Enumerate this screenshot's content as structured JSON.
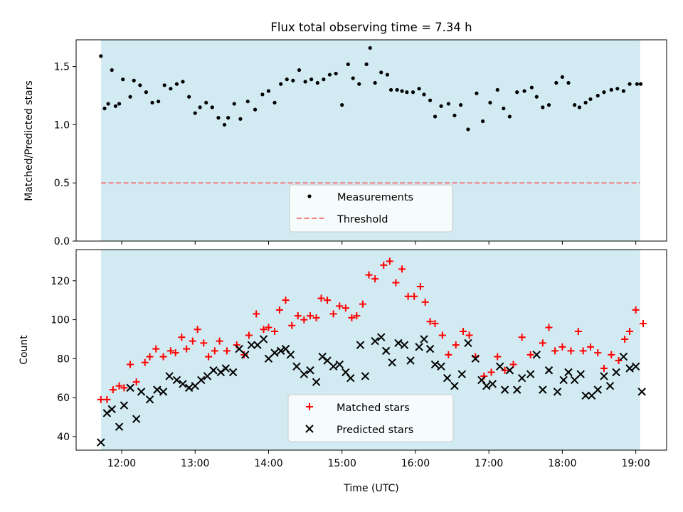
{
  "figure": {
    "title": "Flux total observing time = 7.34 h",
    "xlabel": "Time (UTC)",
    "x_tick_labels": [
      "12:00",
      "13:00",
      "14:00",
      "15:00",
      "16:00",
      "17:00",
      "18:00",
      "19:00"
    ],
    "observing_window_color": "#add8e6"
  },
  "chart_data": [
    {
      "type": "scatter",
      "panel": "top",
      "title": "Flux total observing time = 7.34 h",
      "xlabel": "",
      "ylabel": "Matched/Predicted stars",
      "xlim": [
        11.38,
        19.42
      ],
      "ylim": [
        0.0,
        1.73
      ],
      "x_ticks": [
        12,
        13,
        14,
        15,
        16,
        17,
        18,
        19
      ],
      "y_ticks": [
        0.0,
        0.5,
        1.0,
        1.5
      ],
      "y_tick_labels": [
        "0.0",
        "0.5",
        "1.0",
        "1.5"
      ],
      "observing_window": [
        11.72,
        19.06
      ],
      "legend": {
        "placement": "lower-center",
        "entries": [
          "Measurements",
          "Threshold"
        ]
      },
      "series": [
        {
          "name": "Measurements",
          "marker": "dot",
          "color": "#000000",
          "x": [
            11.717,
            11.767,
            11.817,
            11.867,
            11.917,
            11.967,
            12.017,
            12.117,
            12.167,
            12.25,
            12.333,
            12.417,
            12.5,
            12.583,
            12.667,
            12.75,
            12.833,
            12.917,
            13.0,
            13.067,
            13.15,
            13.233,
            13.317,
            13.4,
            13.45,
            13.533,
            13.617,
            13.717,
            13.817,
            13.917,
            14.0,
            14.083,
            14.167,
            14.25,
            14.333,
            14.417,
            14.5,
            14.583,
            14.667,
            14.75,
            14.833,
            14.917,
            15.0,
            15.083,
            15.15,
            15.233,
            15.333,
            15.383,
            15.45,
            15.533,
            15.617,
            15.667,
            15.75,
            15.817,
            15.883,
            15.967,
            16.05,
            16.117,
            16.2,
            16.267,
            16.35,
            16.45,
            16.533,
            16.617,
            16.717,
            16.833,
            16.917,
            17.017,
            17.117,
            17.2,
            17.283,
            17.383,
            17.483,
            17.583,
            17.65,
            17.733,
            17.817,
            17.917,
            18.0,
            18.083,
            18.167,
            18.233,
            18.317,
            18.383,
            18.483,
            18.567,
            18.667,
            18.75,
            18.833,
            18.917,
            19.017,
            19.067
          ],
          "y": [
            1.59,
            1.14,
            1.18,
            1.47,
            1.16,
            1.18,
            1.39,
            1.24,
            1.38,
            1.34,
            1.28,
            1.19,
            1.2,
            1.34,
            1.31,
            1.35,
            1.37,
            1.24,
            1.1,
            1.15,
            1.19,
            1.15,
            1.06,
            1.0,
            1.06,
            1.18,
            1.05,
            1.2,
            1.13,
            1.26,
            1.29,
            1.19,
            1.35,
            1.39,
            1.38,
            1.47,
            1.37,
            1.39,
            1.36,
            1.39,
            1.43,
            1.44,
            1.17,
            1.52,
            1.4,
            1.35,
            1.52,
            1.66,
            1.36,
            1.45,
            1.43,
            1.3,
            1.3,
            1.29,
            1.28,
            1.28,
            1.31,
            1.26,
            1.21,
            1.07,
            1.16,
            1.18,
            1.08,
            1.17,
            0.96,
            1.27,
            1.03,
            1.19,
            1.3,
            1.14,
            1.07,
            1.28,
            1.29,
            1.32,
            1.24,
            1.15,
            1.17,
            1.36,
            1.41,
            1.36,
            1.17,
            1.15,
            1.19,
            1.22,
            1.25,
            1.28,
            1.3,
            1.31,
            1.29,
            1.35,
            1.35,
            1.35
          ]
        },
        {
          "name": "Threshold",
          "marker": "dashed-line",
          "color": "#f08080",
          "x": [
            11.72,
            19.06
          ],
          "y": [
            0.5,
            0.5
          ]
        }
      ]
    },
    {
      "type": "scatter",
      "panel": "bottom",
      "title": "",
      "xlabel": "Time (UTC)",
      "ylabel": "Count",
      "xlim": [
        11.38,
        19.42
      ],
      "ylim": [
        33.0,
        136.0
      ],
      "x_ticks": [
        12,
        13,
        14,
        15,
        16,
        17,
        18,
        19
      ],
      "y_ticks": [
        40,
        60,
        80,
        100,
        120
      ],
      "y_tick_labels": [
        "40",
        "60",
        "80",
        "100",
        "120"
      ],
      "observing_window": [
        11.72,
        19.06
      ],
      "legend": {
        "placement": "lower-center",
        "entries": [
          "Matched stars",
          "Predicted stars"
        ]
      },
      "series": [
        {
          "name": "Matched stars",
          "marker": "plus",
          "color": "#ff0000",
          "x": [
            11.717,
            11.8,
            11.883,
            11.967,
            12.033,
            12.117,
            12.2,
            12.317,
            12.383,
            12.467,
            12.567,
            12.667,
            12.733,
            12.817,
            12.883,
            12.967,
            13.033,
            13.117,
            13.183,
            13.267,
            13.333,
            13.433,
            13.567,
            13.667,
            13.733,
            13.833,
            13.933,
            14.0,
            14.083,
            14.15,
            14.233,
            14.317,
            14.4,
            14.483,
            14.567,
            14.65,
            14.717,
            14.8,
            14.883,
            14.967,
            15.05,
            15.133,
            15.2,
            15.283,
            15.367,
            15.45,
            15.567,
            15.65,
            15.733,
            15.817,
            15.9,
            15.983,
            16.067,
            16.133,
            16.2,
            16.267,
            16.367,
            16.45,
            16.55,
            16.65,
            16.733,
            16.817,
            16.933,
            17.033,
            17.117,
            17.217,
            17.333,
            17.45,
            17.567,
            17.733,
            17.817,
            17.9,
            18.0,
            18.117,
            18.217,
            18.283,
            18.383,
            18.483,
            18.567,
            18.667,
            18.767,
            18.85,
            18.917,
            19.0,
            19.1
          ],
          "y": [
            59,
            59,
            64,
            66,
            65,
            77,
            68,
            78,
            81,
            85,
            81,
            84,
            83,
            91,
            85,
            89,
            95,
            88,
            81,
            84,
            89,
            84,
            87,
            82,
            92,
            103,
            95,
            96,
            94,
            105,
            110,
            97,
            102,
            100,
            102,
            101,
            111,
            110,
            103,
            107,
            106,
            101,
            102,
            108,
            123,
            121,
            128,
            130,
            119,
            126,
            112,
            112,
            117,
            109,
            99,
            98,
            92,
            82,
            87,
            94,
            92,
            81,
            71,
            73,
            81,
            74,
            77,
            91,
            82,
            88,
            96,
            84,
            86,
            84,
            94,
            84,
            86,
            83,
            75,
            82,
            79,
            90,
            94,
            105,
            98
          ]
        },
        {
          "name": "Predicted stars",
          "marker": "x",
          "color": "#000000",
          "x": [
            11.717,
            11.8,
            11.867,
            11.967,
            12.033,
            12.117,
            12.2,
            12.267,
            12.383,
            12.483,
            12.567,
            12.65,
            12.75,
            12.833,
            12.917,
            13.0,
            13.083,
            13.167,
            13.25,
            13.35,
            13.417,
            13.517,
            13.6,
            13.683,
            13.767,
            13.85,
            13.933,
            14.0,
            14.083,
            14.167,
            14.233,
            14.3,
            14.383,
            14.483,
            14.567,
            14.65,
            14.733,
            14.8,
            14.883,
            14.967,
            15.05,
            15.117,
            15.25,
            15.317,
            15.45,
            15.533,
            15.6,
            15.683,
            15.767,
            15.85,
            15.933,
            16.05,
            16.117,
            16.2,
            16.267,
            16.35,
            16.433,
            16.533,
            16.633,
            16.717,
            16.817,
            16.9,
            16.967,
            17.05,
            17.15,
            17.217,
            17.283,
            17.383,
            17.45,
            17.567,
            17.65,
            17.733,
            17.817,
            17.933,
            18.017,
            18.083,
            18.167,
            18.25,
            18.317,
            18.4,
            18.483,
            18.567,
            18.65,
            18.733,
            18.833,
            18.917,
            19.0,
            19.083
          ],
          "y": [
            37,
            52,
            54,
            45,
            56,
            65,
            49,
            63,
            59,
            64,
            63,
            71,
            69,
            67,
            65,
            66,
            69,
            71,
            74,
            73,
            75,
            73,
            85,
            82,
            87,
            87,
            90,
            80,
            83,
            84,
            85,
            82,
            76,
            72,
            74,
            68,
            81,
            79,
            76,
            77,
            73,
            70,
            87,
            71,
            89,
            91,
            84,
            78,
            88,
            87,
            79,
            86,
            90,
            85,
            77,
            76,
            70,
            66,
            72,
            88,
            80,
            69,
            66,
            67,
            76,
            64,
            74,
            64,
            70,
            72,
            82,
            64,
            74,
            63,
            69,
            73,
            69,
            72,
            61,
            61,
            64,
            71,
            66,
            73,
            81,
            75,
            76,
            63
          ]
        }
      ]
    }
  ]
}
